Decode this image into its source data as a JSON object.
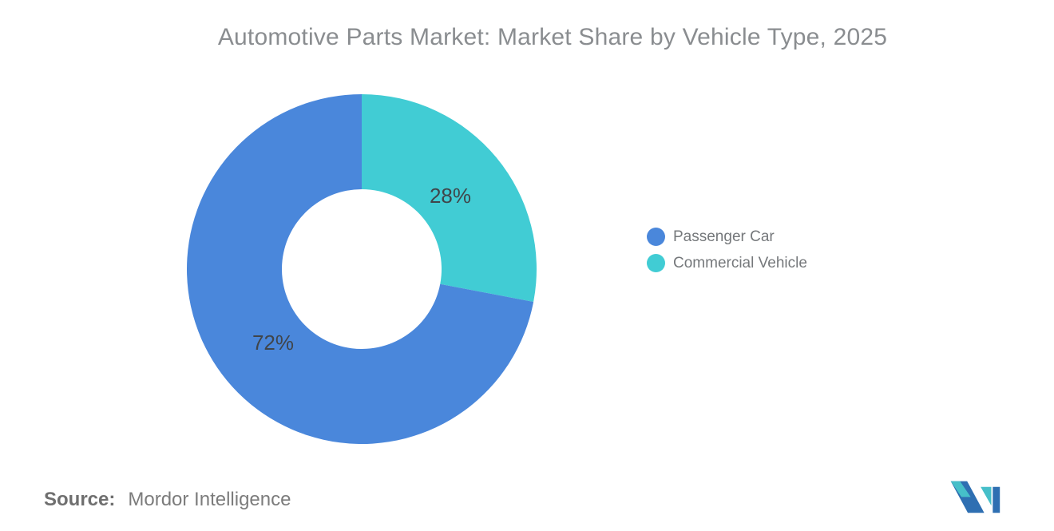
{
  "title": "Automotive Parts Market: Market Share by Vehicle Type, 2025",
  "chart_data": {
    "type": "pie",
    "donut": true,
    "title": "Automotive Parts Market: Market Share by Vehicle Type, 2025",
    "categories": [
      "Passenger Car",
      "Commercial Vehicle"
    ],
    "values": [
      72,
      28
    ],
    "data_labels": [
      "72%",
      "28%"
    ],
    "colors": [
      "#4a87db",
      "#41ccd4"
    ],
    "inner_radius_ratio": 0.46,
    "start_angle": "top",
    "direction": "clockwise",
    "draw_order": [
      1,
      0
    ],
    "legend_position": "right",
    "data_label_color": "#40454a",
    "background": "#ffffff"
  },
  "legend": {
    "items": [
      {
        "label": "Passenger Car",
        "color": "#4a87db"
      },
      {
        "label": "Commercial Vehicle",
        "color": "#41ccd4"
      }
    ]
  },
  "source": {
    "label": "Source:",
    "value": "Mordor Intelligence"
  },
  "branding": {
    "logo": "mordor-intelligence-logo",
    "logo_blue": "#2e6fb2",
    "logo_teal": "#46bfc9"
  },
  "style": {
    "title_color": "#8a8d90",
    "legend_text_color": "#75787b",
    "source_text_color": "#7c7c7c"
  }
}
